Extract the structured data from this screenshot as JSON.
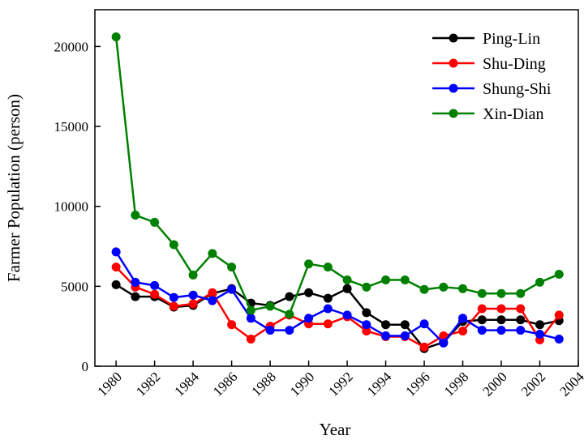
{
  "chart_data": {
    "type": "line",
    "x_label": "Year",
    "y_label": "Farmer Population (person)",
    "x": [
      1980,
      1981,
      1982,
      1983,
      1984,
      1985,
      1986,
      1987,
      1988,
      1989,
      1990,
      1991,
      1992,
      1993,
      1994,
      1995,
      1996,
      1997,
      1998,
      1999,
      2000,
      2001,
      2002,
      2003
    ],
    "series": [
      {
        "name": "Ping-Lin",
        "color": "#000000",
        "values": [
          5100,
          4350,
          4350,
          3700,
          3800,
          4550,
          4850,
          3950,
          3800,
          4350,
          4600,
          4250,
          4850,
          3350,
          2600,
          2600,
          1100,
          1500,
          2800,
          2900,
          2900,
          2900,
          2600,
          2850
        ]
      },
      {
        "name": "Shu-Ding",
        "color": "#ff0000",
        "values": [
          6200,
          4950,
          4500,
          3750,
          3900,
          4600,
          2600,
          1700,
          2500,
          3200,
          2650,
          2650,
          3100,
          2200,
          1850,
          1850,
          1200,
          1900,
          2200,
          3600,
          3600,
          3600,
          1650,
          3200
        ]
      },
      {
        "name": "Shung-Shi",
        "color": "#0000ff",
        "values": [
          7150,
          5250,
          5050,
          4300,
          4450,
          4100,
          4800,
          3000,
          2250,
          2250,
          3000,
          3600,
          3200,
          2600,
          1900,
          1900,
          2650,
          1450,
          3000,
          2250,
          2250,
          2250,
          2000,
          1700
        ]
      },
      {
        "name": "Xin-Dian",
        "color": "#008000",
        "values": [
          20600,
          9450,
          9000,
          7600,
          5700,
          7050,
          6200,
          3500,
          3750,
          3250,
          6400,
          6200,
          5400,
          4950,
          5400,
          5400,
          4800,
          4950,
          4850,
          4550,
          4550,
          4550,
          5250,
          5750
        ]
      }
    ],
    "xlim": [
      1978.9,
      2004
    ],
    "xticks": [
      1980,
      1982,
      1984,
      1986,
      1988,
      1990,
      1992,
      1994,
      1996,
      1998,
      2000,
      2002,
      2004
    ],
    "ylim": [
      0,
      22300
    ],
    "yticks": [
      0,
      5000,
      10000,
      15000,
      20000
    ],
    "legend": "upper-right",
    "grid": false
  }
}
